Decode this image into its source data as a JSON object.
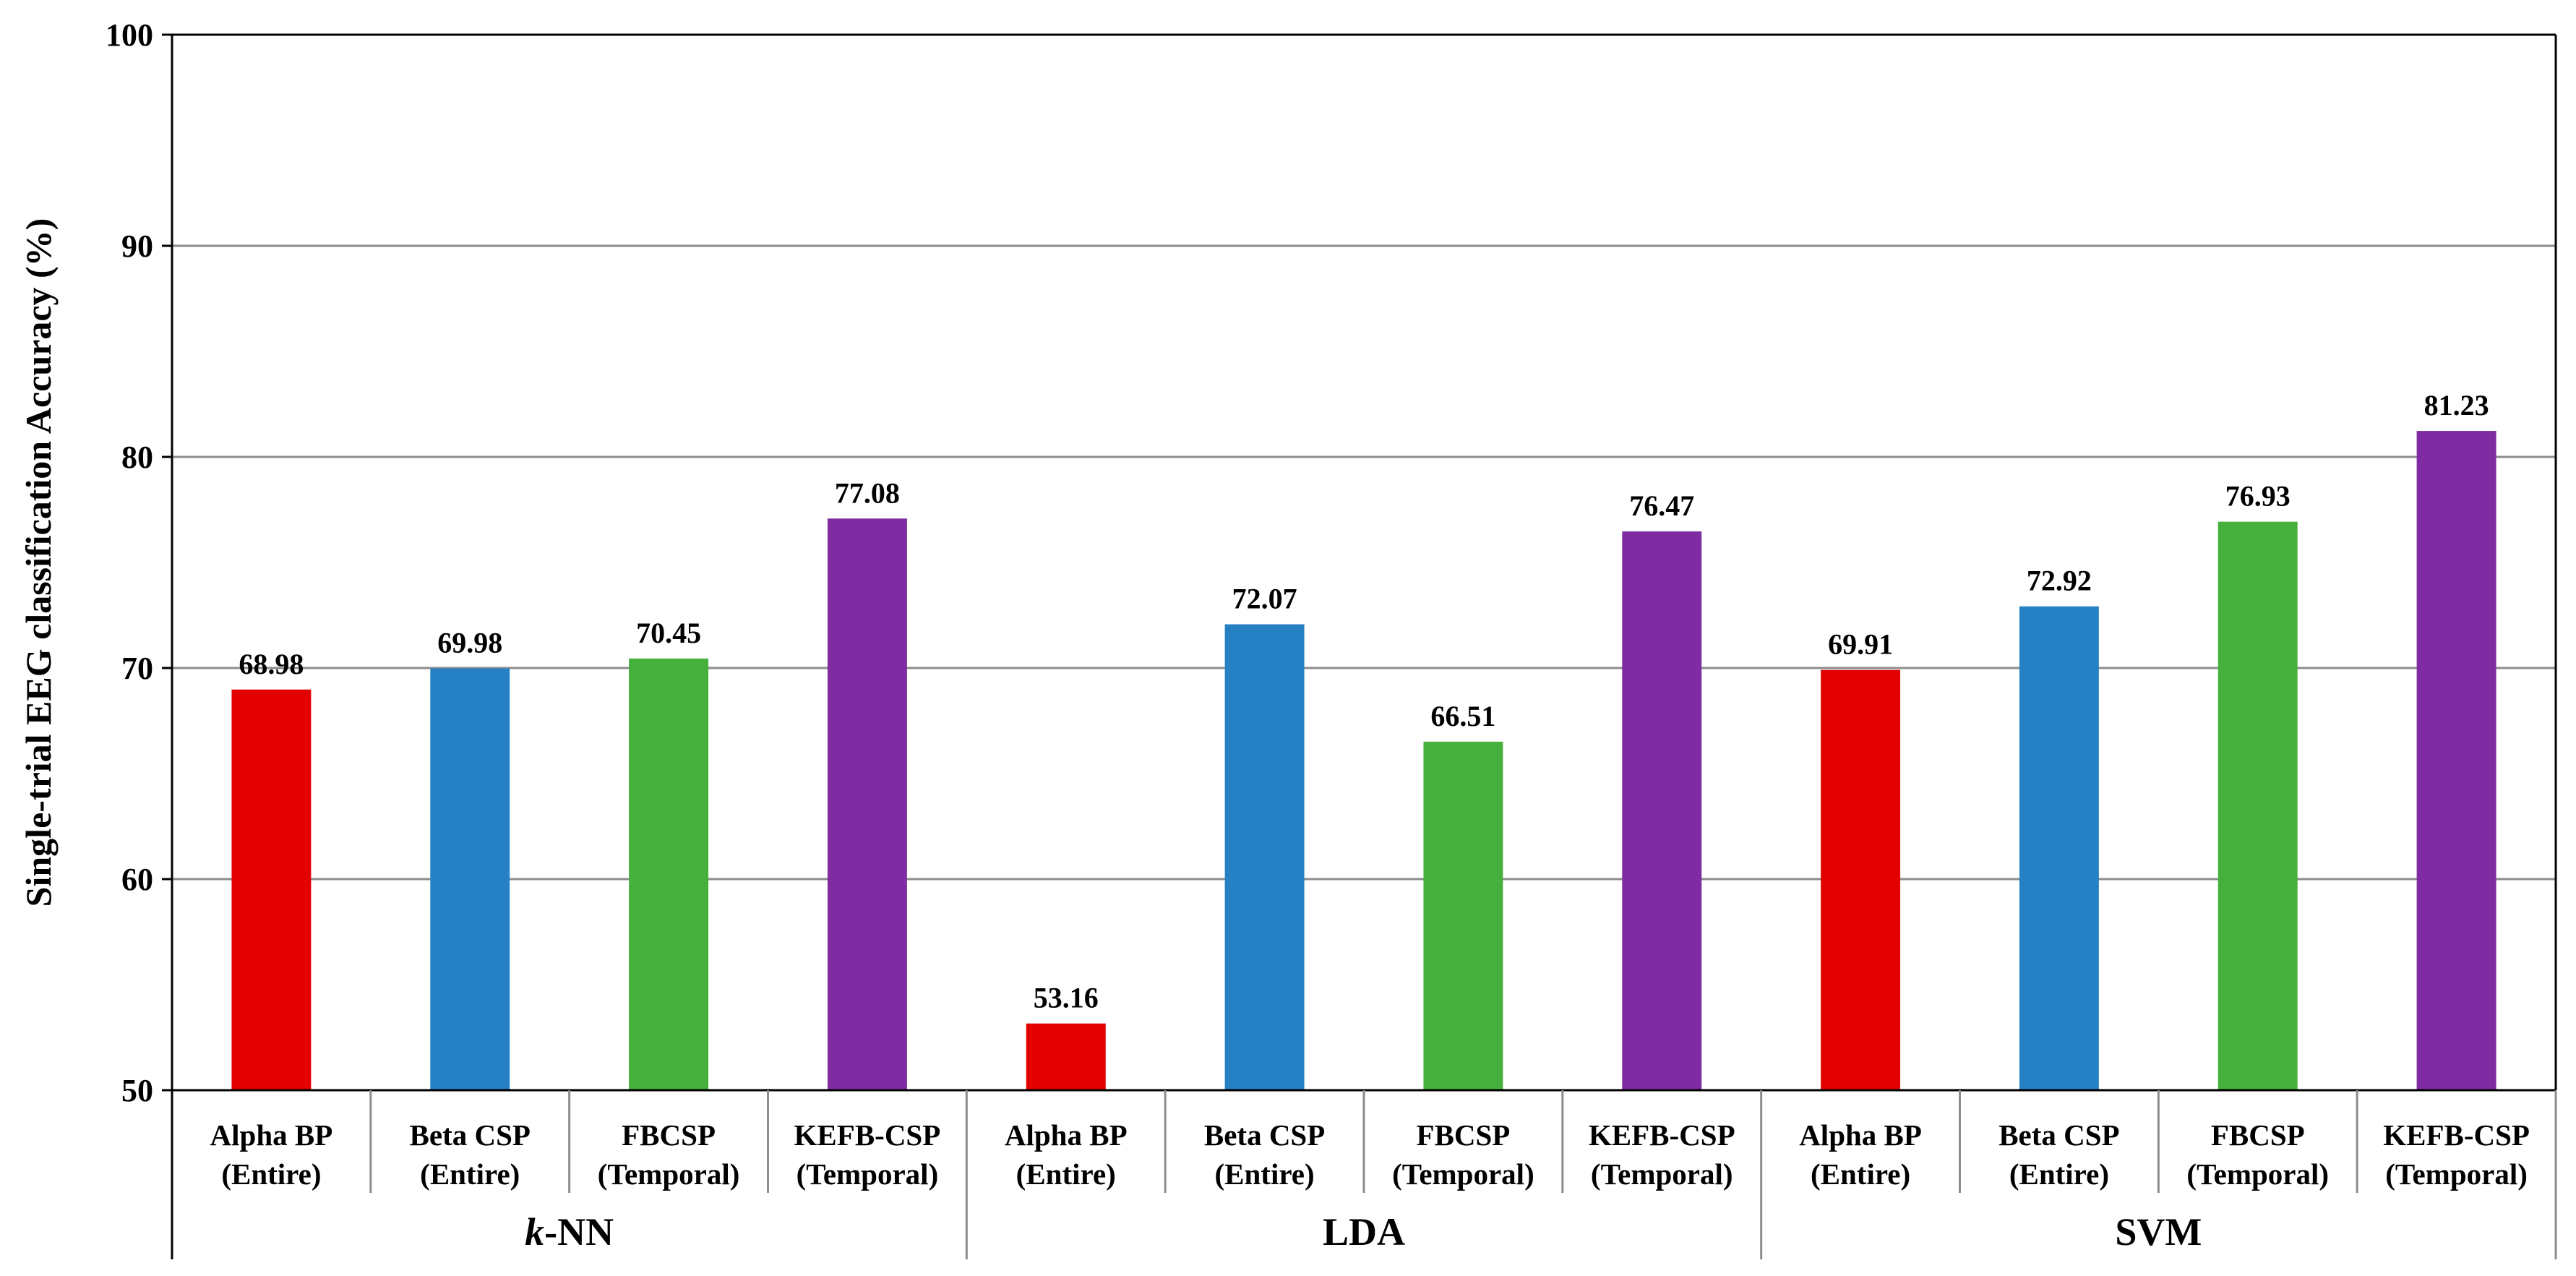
{
  "chart_data": {
    "type": "bar",
    "title": "",
    "xlabel": "",
    "ylabel": "Single-trial EEG classification Accuracy (%)",
    "ylim": [
      50,
      100
    ],
    "yticks": [
      "50",
      "60",
      "70",
      "80",
      "90",
      "100"
    ],
    "grid": true,
    "colors": {
      "Alpha BP": "#e30000",
      "Beta CSP": "#2581c4",
      "FBCSP": "#45b03c",
      "KEFB-CSP": "#7f2ca3"
    },
    "groups": [
      {
        "name_italic": "k",
        "name_rest": "-NN",
        "bars": [
          {
            "method": "Alpha BP",
            "line1": "Alpha BP",
            "line2": "(Entire)",
            "value": 68.98,
            "label": "68.98"
          },
          {
            "method": "Beta CSP",
            "line1": "Beta CSP",
            "line2": "(Entire)",
            "value": 69.98,
            "label": "69.98"
          },
          {
            "method": "FBCSP",
            "line1": "FBCSP",
            "line2": "(Temporal)",
            "value": 70.45,
            "label": "70.45"
          },
          {
            "method": "KEFB-CSP",
            "line1": "KEFB-CSP",
            "line2": "(Temporal)",
            "value": 77.08,
            "label": "77.08"
          }
        ]
      },
      {
        "name_italic": "",
        "name_rest": "LDA",
        "bars": [
          {
            "method": "Alpha BP",
            "line1": "Alpha BP",
            "line2": "(Entire)",
            "value": 53.16,
            "label": "53.16"
          },
          {
            "method": "Beta CSP",
            "line1": "Beta CSP",
            "line2": "(Entire)",
            "value": 72.07,
            "label": "72.07"
          },
          {
            "method": "FBCSP",
            "line1": "FBCSP",
            "line2": "(Temporal)",
            "value": 66.51,
            "label": "66.51"
          },
          {
            "method": "KEFB-CSP",
            "line1": "KEFB-CSP",
            "line2": "(Temporal)",
            "value": 76.47,
            "label": "76.47"
          }
        ]
      },
      {
        "name_italic": "",
        "name_rest": "SVM",
        "bars": [
          {
            "method": "Alpha BP",
            "line1": "Alpha BP",
            "line2": "(Entire)",
            "value": 69.91,
            "label": "69.91"
          },
          {
            "method": "Beta CSP",
            "line1": "Beta CSP",
            "line2": "(Entire)",
            "value": 72.92,
            "label": "72.92"
          },
          {
            "method": "FBCSP",
            "line1": "FBCSP",
            "line2": "(Temporal)",
            "value": 76.93,
            "label": "76.93"
          },
          {
            "method": "KEFB-CSP",
            "line1": "KEFB-CSP",
            "line2": "(Temporal)",
            "value": 81.23,
            "label": "81.23"
          }
        ]
      }
    ]
  }
}
